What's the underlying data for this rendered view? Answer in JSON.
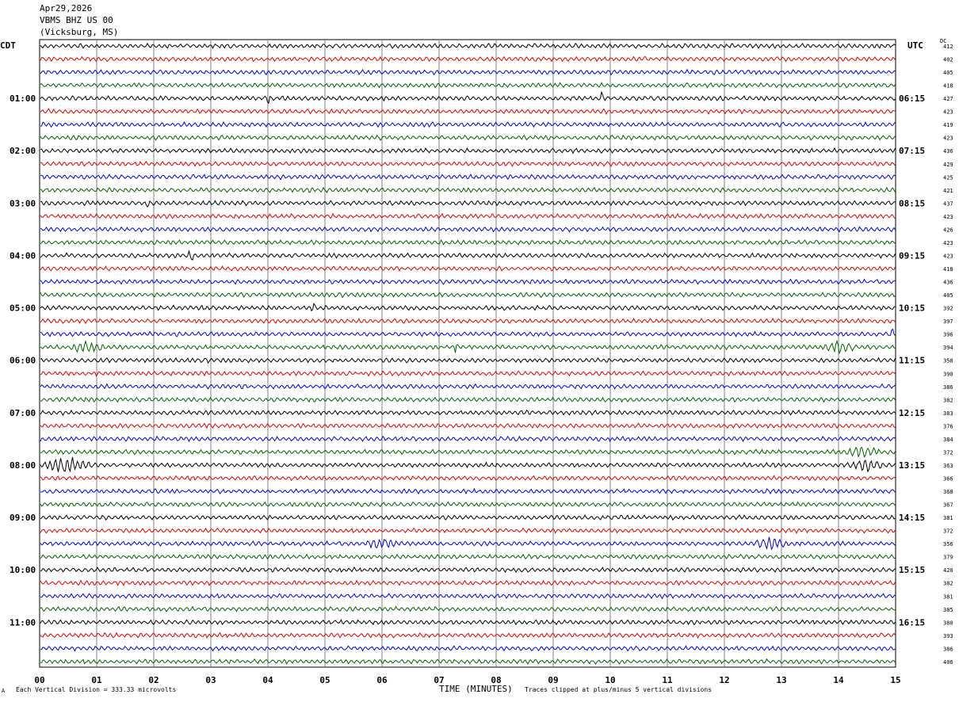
{
  "header": {
    "date": "Apr29,2026",
    "station": "VBMS BHZ US 00",
    "location": "(Vicksburg, MS)"
  },
  "left_timezone": "CDT",
  "right_timezone": "UTC",
  "dc_label": "DC",
  "footer": {
    "scale_note": "Each Vertical Division =  333.33 microvolts",
    "xlabel": "TIME (MINUTES)",
    "clip_note": "Traces clipped at plus/minus 5 vertical divisions",
    "corner_mark": "A"
  },
  "colors": {
    "trace_cycle": [
      "#000000",
      "#e00000",
      "#0000e0",
      "#006400"
    ],
    "grid": "#808080",
    "background": "#ffffff"
  },
  "chart_data": {
    "type": "line",
    "title": "",
    "xlabel": "TIME (MINUTES)",
    "xlim": [
      0,
      15
    ],
    "x_ticks": [
      "00",
      "01",
      "02",
      "03",
      "04",
      "05",
      "06",
      "07",
      "08",
      "09",
      "10",
      "11",
      "12",
      "13",
      "14",
      "15"
    ],
    "trace_count": 48,
    "trace_minutes": 15,
    "left_hour_labels": [
      "01:00",
      "02:00",
      "03:00",
      "04:00",
      "05:00",
      "06:00",
      "07:00",
      "08:00",
      "09:00",
      "10:00",
      "11:00"
    ],
    "right_hour_labels": [
      "06:15",
      "07:15",
      "08:15",
      "09:15",
      "10:15",
      "11:15",
      "12:15",
      "13:15",
      "14:15",
      "15:15",
      "16:15"
    ],
    "dc_values": [
      "412",
      "402",
      "405",
      "418",
      "427",
      "423",
      "419",
      "423",
      "436",
      "429",
      "425",
      "421",
      "437",
      "423",
      "426",
      "423",
      "423",
      "418",
      "436",
      "405",
      "392",
      "397",
      "396",
      "394",
      "358",
      "390",
      "386",
      "382",
      "383",
      "376",
      "384",
      "372",
      "363",
      "366",
      "368",
      "367",
      "381",
      "372",
      "356",
      "379",
      "420",
      "382",
      "381",
      "385",
      "380",
      "393",
      "386",
      "406"
    ],
    "events": [
      {
        "trace": 4,
        "minute": 4.0,
        "note": "spike"
      },
      {
        "trace": 4,
        "minute": 9.85,
        "note": "spike"
      },
      {
        "trace": 12,
        "minute": 1.9,
        "note": "spike"
      },
      {
        "trace": 16,
        "minute": 2.65,
        "note": "spike"
      },
      {
        "trace": 20,
        "minute": 4.8,
        "note": "spike"
      },
      {
        "trace": 22,
        "minute": 14.95,
        "note": "spike"
      },
      {
        "trace": 23,
        "minute": 0.8,
        "note": "burst"
      },
      {
        "trace": 23,
        "minute": 7.3,
        "note": "spike"
      },
      {
        "trace": 23,
        "minute": 14.0,
        "note": "burst"
      },
      {
        "trace": 31,
        "minute": 14.4,
        "note": "burst"
      },
      {
        "trace": 32,
        "minute": 0.5,
        "note": "large burst"
      },
      {
        "trace": 32,
        "minute": 14.5,
        "note": "burst"
      },
      {
        "trace": 38,
        "minute": 6.0,
        "note": "burst"
      },
      {
        "trace": 38,
        "minute": 12.8,
        "note": "burst"
      }
    ]
  }
}
